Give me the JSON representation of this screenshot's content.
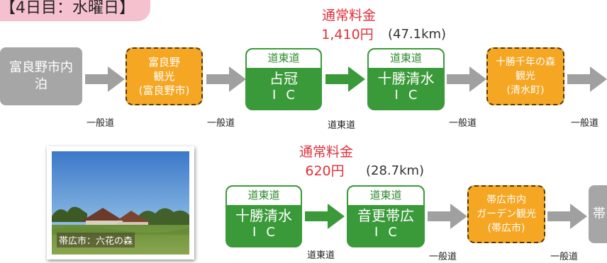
{
  "day_title": "【4日目：水曜日】",
  "toll_1": {
    "label": "通常料金",
    "amount": "1,410円",
    "distance": "(47.1km)"
  },
  "toll_2": {
    "label": "通常料金",
    "amount": "620円",
    "distance": "(28.7km)"
  },
  "row1": {
    "start": {
      "lines": [
        "富良野市内",
        "泊"
      ]
    },
    "spot_1": {
      "lines": [
        "富良野",
        "観光",
        "(富良野市)"
      ]
    },
    "ic_1": {
      "header": "道東道",
      "name": "占冠",
      "ic": "IC"
    },
    "ic_2": {
      "header": "道東道",
      "name": "十勝清水",
      "ic": "IC"
    },
    "spot_2": {
      "lines": [
        "十勝千年の森",
        "観光",
        "(清水町)"
      ]
    },
    "roads": [
      "一般道",
      "一般道",
      "道東道",
      "一般道",
      "一般道"
    ]
  },
  "row2": {
    "ic_1": {
      "header": "道東道",
      "name": "十勝清水",
      "ic": "IC"
    },
    "ic_2": {
      "header": "道東道",
      "name": "音更帯広",
      "ic": "IC"
    },
    "spot": {
      "lines": [
        "帯広市内",
        "ガーデン観光",
        "(帯広市)"
      ]
    },
    "end": {
      "text": "帯"
    },
    "roads": [
      "道東道",
      "一般道",
      "一般道"
    ]
  },
  "photo": {
    "caption": "帯広市：六花の森"
  },
  "colors": {
    "gray_node": "#a6a6a6",
    "orange_node": "#f5a623",
    "green_node": "#3a9a3a",
    "toll_red": "#e0303a",
    "arrow_gray": "#a0a0a0"
  }
}
